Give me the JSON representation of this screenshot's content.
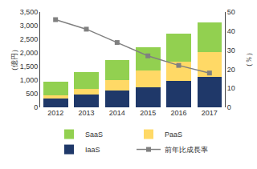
{
  "chart_data": {
    "type": "bar",
    "stacked": true,
    "categories": [
      "2012",
      "2013",
      "2014",
      "2015",
      "2016",
      "2017"
    ],
    "series": [
      {
        "name": "IaaS",
        "color": "#1f3869",
        "values": [
          310,
          470,
          610,
          750,
          980,
          1130
        ]
      },
      {
        "name": "PaaS",
        "color": "#ffd966",
        "values": [
          120,
          200,
          380,
          590,
          700,
          900
        ]
      },
      {
        "name": "SaaS",
        "color": "#92d050",
        "values": [
          520,
          610,
          740,
          870,
          1020,
          1100
        ]
      },
      {
        "name": "前年比成長率",
        "type": "line",
        "axis": "y2",
        "color": "#808080",
        "marker": "square",
        "line_style": "solid",
        "values": [
          46,
          41,
          34,
          27,
          22,
          18
        ]
      }
    ],
    "ylabel": "（億円）",
    "y2label": "（％）",
    "ylim": [
      0,
      3500
    ],
    "yticks": [
      0,
      500,
      {
        "value": 1000,
        "label": "1,000"
      },
      {
        "value": 1500,
        "label": "1,500"
      },
      {
        "value": 2000,
        "label": "2,000"
      },
      {
        "value": 2500,
        "label": "2,500"
      },
      {
        "value": 3000,
        "label": "3,000"
      },
      {
        "value": 3500,
        "label": "3,500"
      }
    ],
    "y2lim": [
      0,
      50
    ],
    "y2ticks": [
      0,
      10,
      20,
      30,
      40,
      50
    ],
    "grid": false,
    "legend": "bottom"
  }
}
